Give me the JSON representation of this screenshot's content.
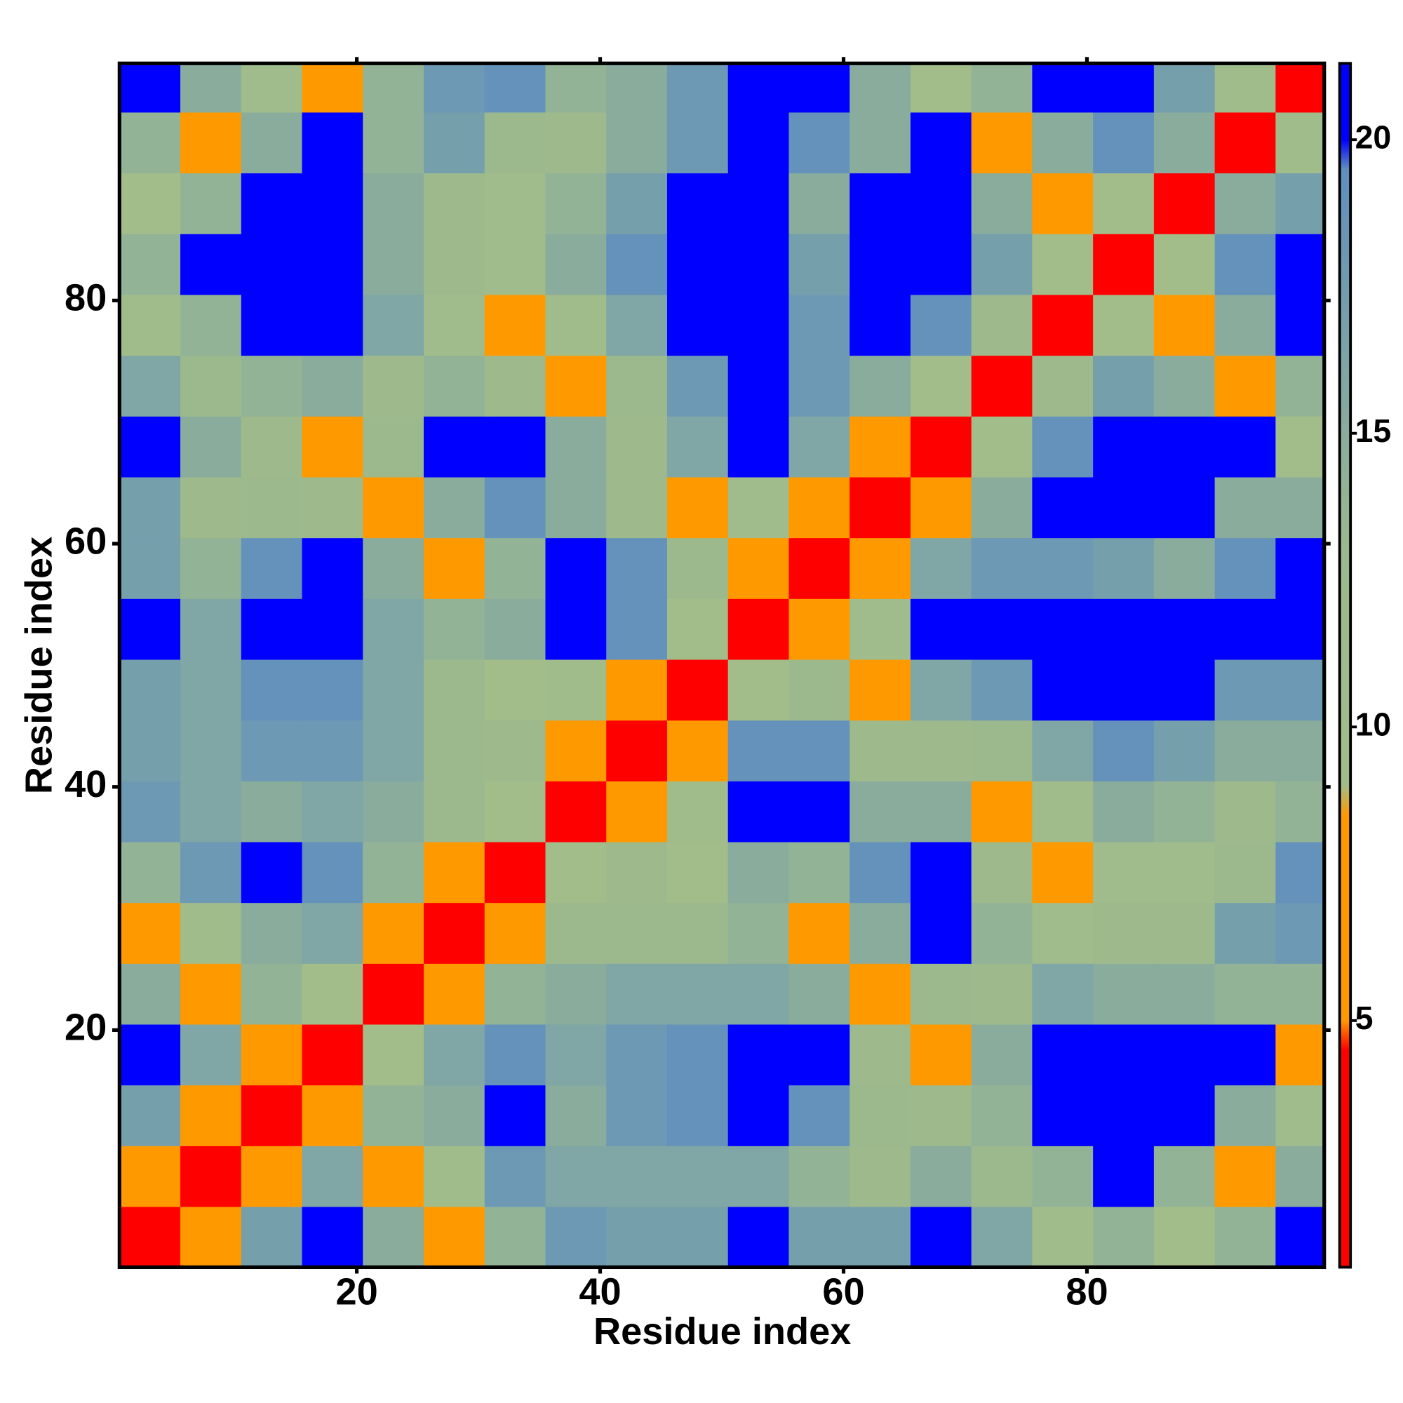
{
  "chart_data": {
    "type": "heatmap",
    "xlabel": "Residue index",
    "ylabel": "Residue index",
    "x": [
      3,
      8,
      13,
      18,
      23,
      28,
      33,
      38,
      43,
      48,
      53,
      58,
      63,
      68,
      73,
      78,
      83,
      88,
      93,
      98
    ],
    "y": [
      3,
      8,
      13,
      18,
      23,
      28,
      33,
      38,
      43,
      48,
      53,
      58,
      63,
      68,
      73,
      78,
      83,
      88,
      93,
      98
    ],
    "z": [
      [
        2,
        8,
        17,
        20,
        15,
        8,
        14,
        18,
        17,
        17,
        20,
        17,
        17,
        21,
        16,
        10,
        14,
        9,
        14,
        21
      ],
      [
        8,
        2,
        8,
        16,
        8,
        10,
        18,
        16,
        16,
        16,
        16,
        14,
        12,
        15,
        13,
        14,
        20,
        14,
        8,
        15
      ],
      [
        17,
        8,
        2,
        8,
        14,
        15,
        20,
        15,
        18,
        19,
        21,
        19,
        13,
        12,
        14,
        21,
        21,
        21,
        15,
        11
      ],
      [
        20,
        16,
        8,
        2,
        9,
        16,
        19,
        16,
        18,
        19,
        21,
        21,
        12,
        7,
        15,
        21,
        21,
        21,
        20,
        7
      ],
      [
        15,
        8,
        14,
        9,
        2,
        8,
        14,
        15,
        16,
        16,
        16,
        15,
        7,
        13,
        12,
        16,
        15,
        15,
        14,
        14
      ],
      [
        8,
        10,
        15,
        16,
        8,
        2,
        8,
        13,
        13,
        13,
        14,
        8,
        15,
        20,
        14,
        11,
        12,
        12,
        17,
        18
      ],
      [
        14,
        18,
        20,
        19,
        14,
        8,
        2,
        9,
        12,
        9,
        15,
        14,
        19,
        21,
        12,
        6,
        11,
        11,
        13,
        19
      ],
      [
        18,
        16,
        15,
        16,
        15,
        13,
        9,
        2,
        6,
        10,
        20,
        20,
        15,
        15,
        7,
        10,
        15,
        14,
        12,
        14
      ],
      [
        17,
        16,
        18,
        18,
        16,
        13,
        12,
        6,
        2,
        8,
        19,
        19,
        12,
        12,
        13,
        16,
        19,
        17,
        15,
        15
      ],
      [
        17,
        16,
        19,
        19,
        16,
        13,
        9,
        10,
        8,
        2,
        9,
        13,
        8,
        16,
        18,
        20,
        21,
        20,
        18,
        18
      ],
      [
        20,
        16,
        21,
        21,
        16,
        14,
        15,
        20,
        19,
        9,
        2,
        6,
        11,
        20,
        20,
        21,
        21,
        21,
        21,
        21
      ],
      [
        17,
        14,
        19,
        21,
        15,
        8,
        14,
        20,
        19,
        13,
        6,
        2,
        8,
        16,
        18,
        18,
        17,
        15,
        19,
        21
      ],
      [
        17,
        12,
        13,
        12,
        7,
        15,
        19,
        15,
        12,
        8,
        11,
        8,
        2,
        8,
        15,
        21,
        21,
        20,
        15,
        15
      ],
      [
        21,
        15,
        12,
        7,
        13,
        20,
        21,
        15,
        12,
        16,
        20,
        16,
        8,
        2,
        9,
        19,
        21,
        21,
        20,
        9
      ],
      [
        16,
        13,
        14,
        15,
        12,
        14,
        12,
        7,
        13,
        18,
        20,
        18,
        15,
        9,
        2,
        12,
        17,
        15,
        8,
        14
      ],
      [
        10,
        14,
        21,
        21,
        16,
        11,
        6,
        10,
        16,
        20,
        21,
        18,
        21,
        19,
        12,
        2,
        9,
        7,
        15,
        21
      ],
      [
        14,
        20,
        21,
        21,
        15,
        12,
        11,
        15,
        19,
        21,
        21,
        17,
        21,
        21,
        17,
        9,
        2,
        9,
        19,
        20
      ],
      [
        9,
        14,
        21,
        21,
        15,
        12,
        11,
        14,
        17,
        20,
        21,
        15,
        20,
        21,
        15,
        7,
        9,
        2,
        15,
        17
      ],
      [
        14,
        8,
        15,
        20,
        14,
        17,
        13,
        12,
        15,
        18,
        21,
        19,
        15,
        20,
        8,
        15,
        19,
        15,
        2,
        10
      ],
      [
        21,
        15,
        11,
        7,
        14,
        18,
        19,
        14,
        15,
        18,
        21,
        21,
        15,
        9,
        14,
        21,
        20,
        17,
        10,
        2
      ]
    ],
    "xlim": [
      0.5,
      99.5
    ],
    "ylim": [
      0.5,
      99.5
    ],
    "xticks": [
      20,
      40,
      60,
      80
    ],
    "yticks": [
      20,
      40,
      60,
      80
    ],
    "colorbar": {
      "lim": [
        0.8,
        21.3
      ],
      "ticks": [
        5,
        10,
        15,
        20
      ]
    },
    "colorscale": [
      [
        0.8,
        "#ff0000"
      ],
      [
        4.5,
        "#ff0000"
      ],
      [
        5,
        "#ff9900"
      ],
      [
        8.5,
        "#ff9900"
      ],
      [
        9,
        "#a3bd8a"
      ],
      [
        13,
        "#9cb98e"
      ],
      [
        19.5,
        "#5f8fbf"
      ],
      [
        20,
        "#0000ff"
      ],
      [
        21.3,
        "#0000ff"
      ]
    ]
  }
}
